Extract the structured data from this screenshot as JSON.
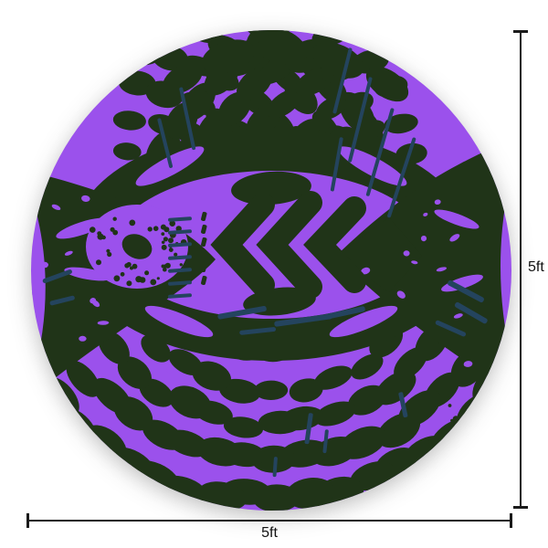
{
  "product_image": {
    "shape": "circle",
    "pattern": "abstract purple and dark-green animal print with chevron eye center, spotted fan rows and navy streak accents",
    "colors": {
      "purple": "#9b51ec",
      "dark_green": "#203418",
      "navy": "#24445e",
      "background": "#ffffff"
    }
  },
  "dimensions": {
    "height_label": "5ft",
    "width_label": "5ft",
    "line_color": "#1a1a1a"
  }
}
